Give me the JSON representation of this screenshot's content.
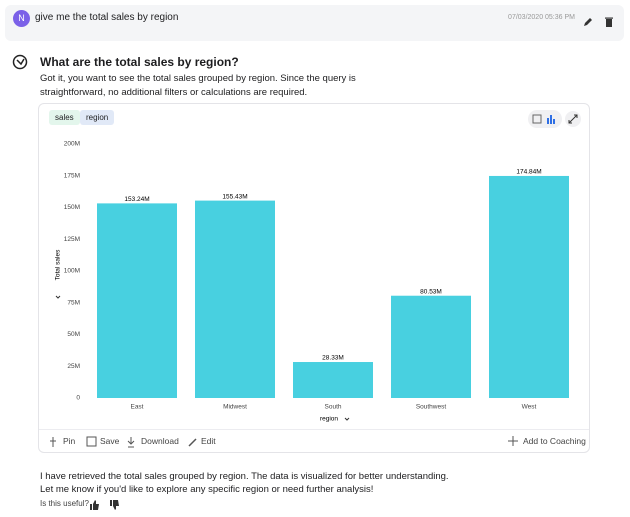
{
  "user_message": {
    "avatar": "N",
    "text": "give me the total sales by region",
    "timestamp": "07/03/2020 05:36 PM"
  },
  "response": {
    "title": "What are the total sales by region?",
    "intro": "Got it, you want to see the total sales grouped by region. Since the query is straightforward, no additional filters or calculations are required.",
    "pills": [
      "sales",
      "region"
    ],
    "actions": [
      "Pin",
      "Save",
      "Download",
      "Edit"
    ],
    "coaching": "Add to Coaching",
    "summary": [
      "I have retrieved the total sales grouped by region. The data is visualized for better understanding.",
      "Let me know if you'd like to explore any specific region or need further analysis!"
    ],
    "feedback_prompt": "Is this useful?"
  },
  "chart_data": {
    "type": "bar",
    "x_label": "region",
    "y_label": "Total sales",
    "categories": [
      "East",
      "Midwest",
      "South",
      "Southwest",
      "West"
    ],
    "values": [
      153240000,
      155430000,
      28330000,
      80530000,
      174840000
    ],
    "value_labels": [
      "153.24M",
      "155.43M",
      "28.33M",
      "80.53M",
      "174.84M"
    ],
    "color": "#48d0e0",
    "ylim": [
      0,
      200000000
    ],
    "yticks": [
      0,
      {
        "value": 25000000,
        "label": "25M"
      },
      {
        "value": 50000000,
        "label": "50M"
      },
      {
        "value": 75000000,
        "label": "75M"
      },
      {
        "value": 100000000,
        "label": "100M"
      },
      {
        "value": 125000000,
        "label": "125M"
      },
      {
        "value": 150000000,
        "label": "150M"
      },
      {
        "value": 175000000,
        "label": "175M"
      },
      {
        "value": 200000000,
        "label": "200M"
      }
    ],
    "grid": false
  }
}
